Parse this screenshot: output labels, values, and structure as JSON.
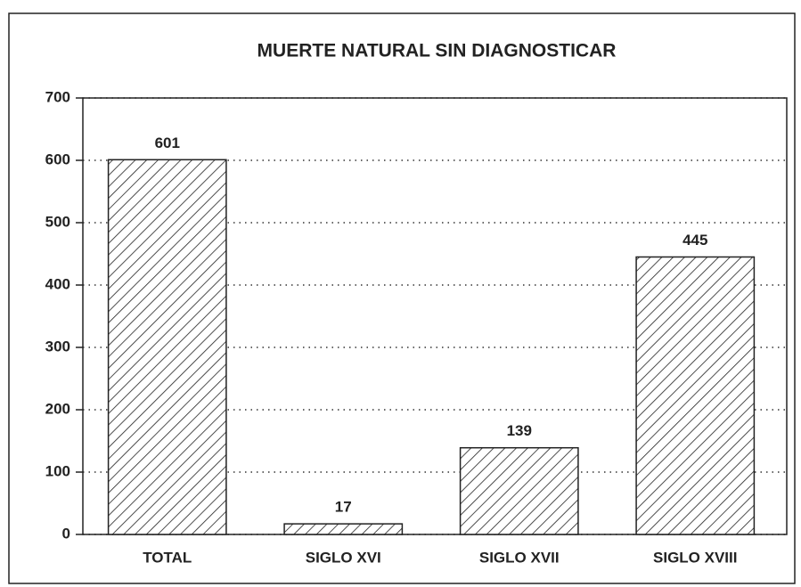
{
  "chart_data": {
    "type": "bar",
    "title": "MUERTE NATURAL SIN DIAGNOSTICAR",
    "categories": [
      "TOTAL",
      "SIGLO XVI",
      "SIGLO XVII",
      "SIGLO XVIII"
    ],
    "values": [
      601,
      17,
      139,
      445
    ],
    "color": "#222222",
    "ylim": [
      0,
      700
    ],
    "yticks": [
      0,
      100,
      200,
      300,
      400,
      500,
      600,
      700
    ],
    "grid": true
  }
}
